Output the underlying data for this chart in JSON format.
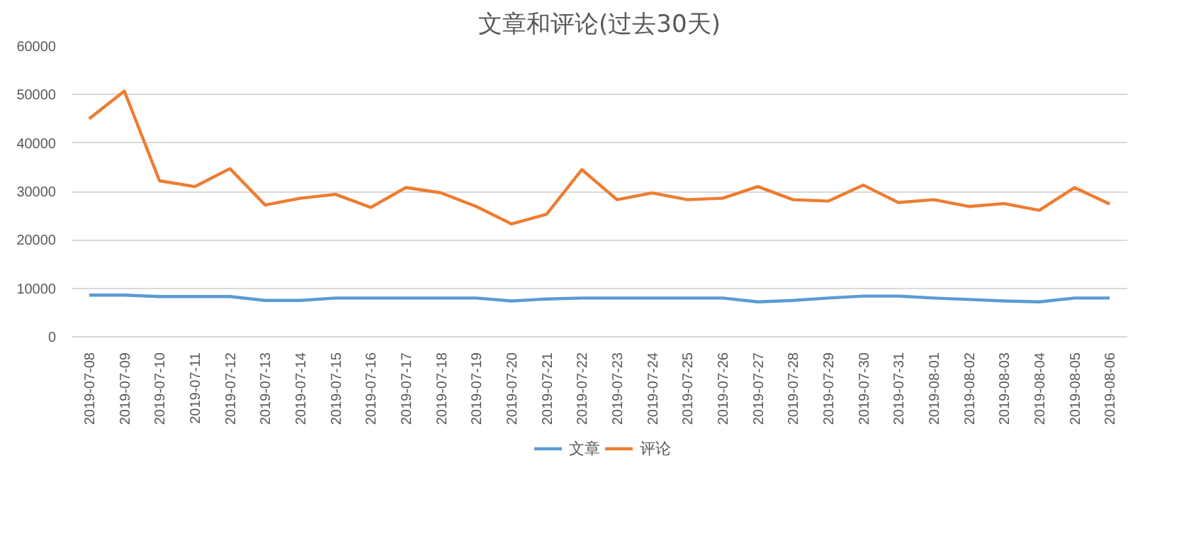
{
  "chart_data": {
    "type": "line",
    "title": "文章和评论(过去30天)",
    "categories": [
      "2019-07-08",
      "2019-07-09",
      "2019-07-10",
      "2019-07-11",
      "2019-07-12",
      "2019-07-13",
      "2019-07-14",
      "2019-07-15",
      "2019-07-16",
      "2019-07-17",
      "2019-07-18",
      "2019-07-19",
      "2019-07-20",
      "2019-07-21",
      "2019-07-22",
      "2019-07-23",
      "2019-07-24",
      "2019-07-25",
      "2019-07-26",
      "2019-07-27",
      "2019-07-28",
      "2019-07-29",
      "2019-07-30",
      "2019-07-31",
      "2019-08-01",
      "2019-08-02",
      "2019-08-03",
      "2019-08-04",
      "2019-08-05",
      "2019-08-06"
    ],
    "series": [
      {
        "name": "文章",
        "color": "#5b9bd5",
        "values": [
          8600,
          8600,
          8300,
          8300,
          8300,
          7500,
          7500,
          8000,
          8000,
          8000,
          8000,
          8000,
          7400,
          7800,
          8000,
          8000,
          8000,
          8000,
          8000,
          7200,
          7500,
          8000,
          8400,
          8400,
          8000,
          7700,
          7400,
          7200,
          8000,
          8000
        ]
      },
      {
        "name": "评论",
        "color": "#ed7d31",
        "values": [
          45000,
          50700,
          32200,
          31000,
          34700,
          27200,
          28600,
          29400,
          26700,
          30800,
          29700,
          26900,
          23300,
          25300,
          34500,
          28300,
          29700,
          28300,
          28600,
          31000,
          28300,
          28000,
          31300,
          27700,
          28300,
          26900,
          27500,
          26100,
          30800,
          27400
        ]
      }
    ],
    "ylim": [
      0,
      60000
    ],
    "yticks": [
      0,
      10000,
      20000,
      30000,
      40000,
      50000,
      60000
    ],
    "grid": "y",
    "legend": "bottom",
    "marker": "none",
    "line_style": "solid"
  }
}
